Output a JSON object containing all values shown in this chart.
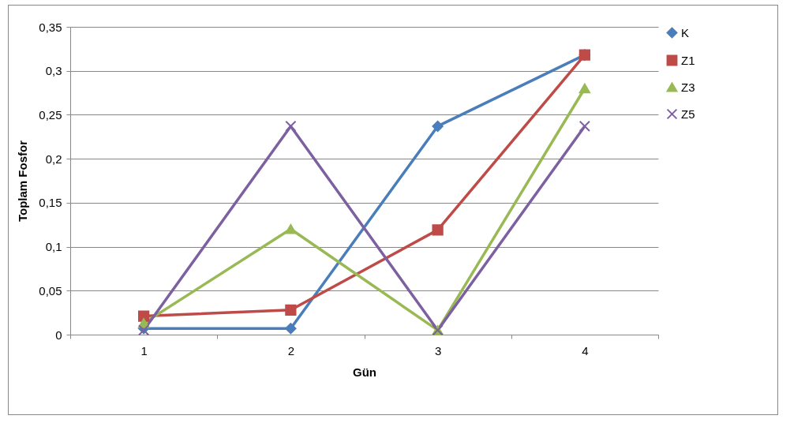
{
  "chart_data": {
    "type": "line",
    "xlabel": "Gün",
    "ylabel": "Toplam Fosfor",
    "categories": [
      "1",
      "2",
      "3",
      "4"
    ],
    "ylim": [
      0,
      0.35
    ],
    "yticks": [
      {
        "value": 0,
        "label": "0"
      },
      {
        "value": 0.05,
        "label": "0,05"
      },
      {
        "value": 0.1,
        "label": "0,1"
      },
      {
        "value": 0.15,
        "label": "0,15"
      },
      {
        "value": 0.2,
        "label": "0,2"
      },
      {
        "value": 0.25,
        "label": "0,25"
      },
      {
        "value": 0.3,
        "label": "0,3"
      },
      {
        "value": 0.35,
        "label": "0,35"
      }
    ],
    "grid": "y",
    "legend": "right",
    "line_style": "solid",
    "series": [
      {
        "name": "K",
        "color": "#4a7ebb",
        "marker": "diamond",
        "values": [
          0.007,
          0.007,
          0.237,
          0.318
        ]
      },
      {
        "name": "Z1",
        "color": "#be4b48",
        "marker": "square",
        "values": [
          0.021,
          0.028,
          0.119,
          0.318
        ]
      },
      {
        "name": "Z3",
        "color": "#98b954",
        "marker": "triangle",
        "values": [
          0.013,
          0.12,
          0.005,
          0.28
        ]
      },
      {
        "name": "Z5",
        "color": "#7d60a0",
        "marker": "cross",
        "values": [
          0.005,
          0.237,
          0.005,
          0.237
        ]
      }
    ]
  }
}
